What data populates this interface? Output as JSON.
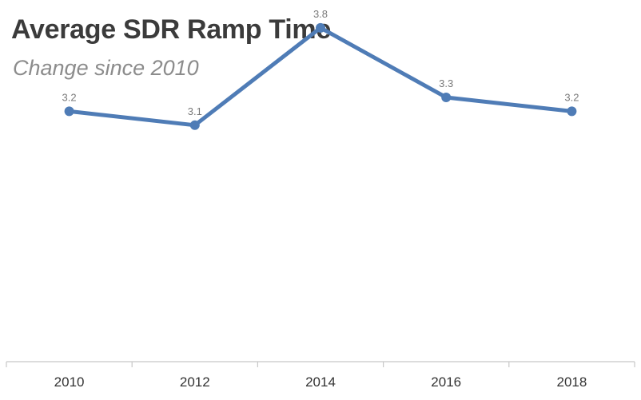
{
  "chart_data": {
    "type": "line",
    "title": "Average SDR Ramp Time",
    "subtitle": "Change since 2010",
    "xlabel": "",
    "ylabel": "",
    "categories": [
      "2010",
      "2012",
      "2014",
      "2016",
      "2018"
    ],
    "series": [
      {
        "values": [
          3.2,
          3.1,
          3.8,
          3.3,
          3.2
        ],
        "color": "#4f7cb6"
      }
    ],
    "data_labels": [
      "3.2",
      "3.1",
      "3.8",
      "3.3",
      "3.2"
    ],
    "ylim": [
      1.4,
      4.0
    ],
    "grid": false,
    "legend": "none",
    "axis_color": "#c8c8c8",
    "tick_label_color": "#333333",
    "data_label_color": "#7a7a7a"
  }
}
